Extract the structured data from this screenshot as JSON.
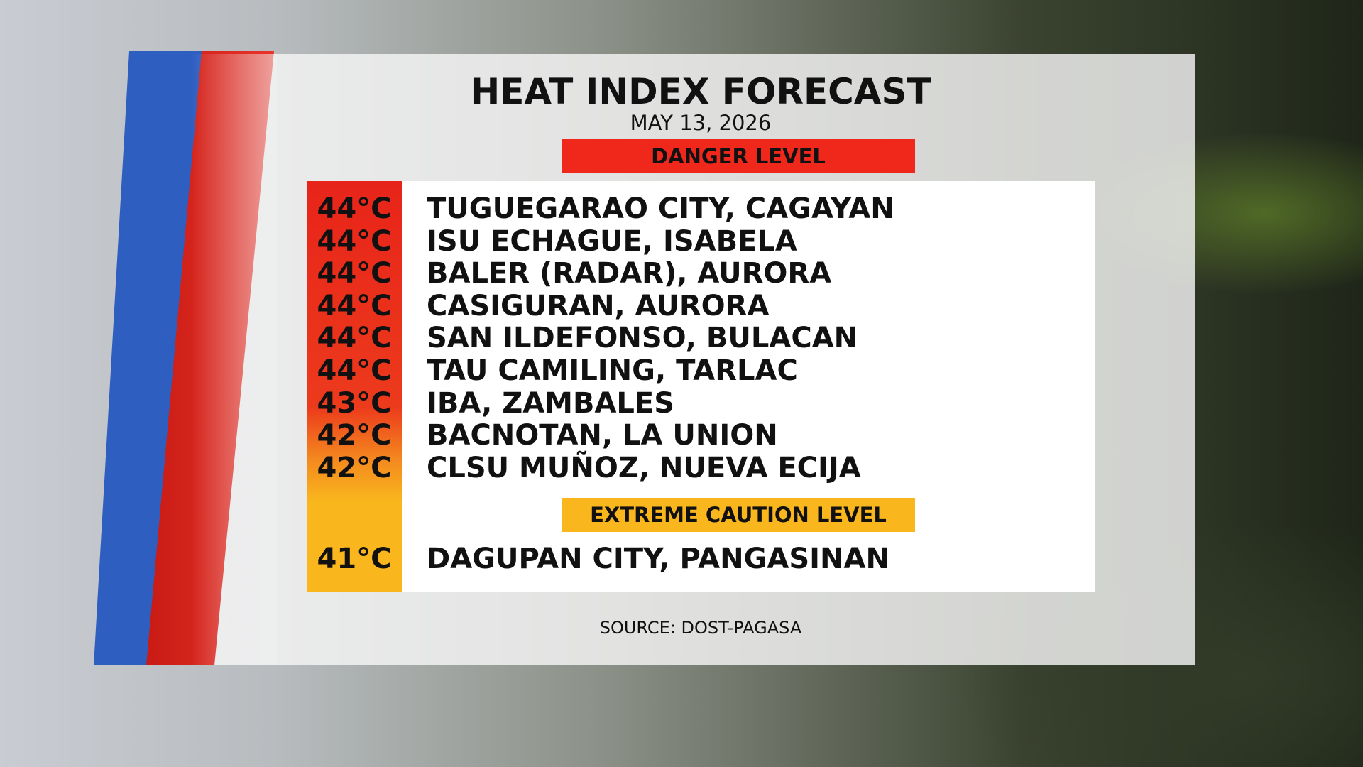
{
  "header": {
    "title": "HEAT INDEX FORECAST",
    "date": "MAY 13, 2026"
  },
  "sections": [
    {
      "label": "DANGER LEVEL",
      "rows": [
        [
          "44°C",
          "TUGUEGARAO CITY, CAGAYAN"
        ],
        [
          "44°C",
          "ISU ECHAGUE, ISABELA"
        ],
        [
          "44°C",
          "BALER (RADAR), AURORA"
        ],
        [
          "44°C",
          "CASIGURAN, AURORA"
        ],
        [
          "44°C",
          "SAN ILDEFONSO, BULACAN"
        ],
        [
          "44°C",
          "TAU CAMILING, TARLAC"
        ],
        [
          "43°C",
          "IBA, ZAMBALES"
        ],
        [
          "42°C",
          "BACNOTAN, LA UNION"
        ],
        [
          "42°C",
          "CLSU MUÑOZ, NUEVA ECIJA"
        ]
      ]
    },
    {
      "label": "EXTREME CAUTION LEVEL",
      "rows": [
        [
          "41°C",
          "DAGUPAN CITY, PANGASINAN"
        ]
      ]
    }
  ],
  "footer": {
    "source": "SOURCE: DOST-PAGASA"
  }
}
